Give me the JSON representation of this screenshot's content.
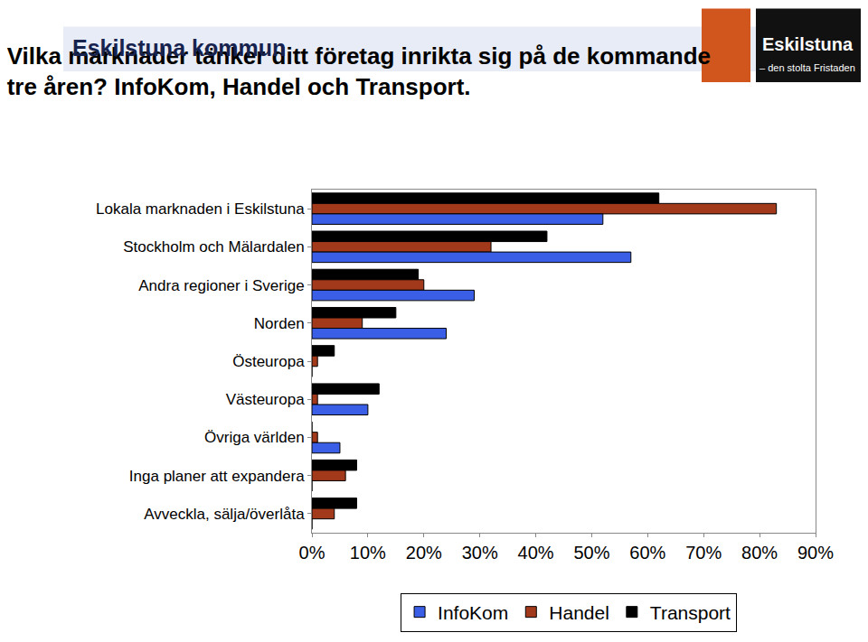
{
  "chart_data": {
    "type": "bar",
    "orientation": "horizontal",
    "title": "Vilka marknader tänker ditt företag inrikta sig på de kommande\ntre åren? InfoKom, Handel och Transport.",
    "annotations": [
      {
        "text": "Eskilstuna kommun"
      },
      {
        "text": "Eskilstuna"
      },
      {
        "text": "– den stolta Fristaden"
      }
    ],
    "categories": [
      "Lokala marknaden i Eskilstuna",
      "Stockholm och Mälardalen",
      "Andra regioner i Sverige",
      "Norden",
      "Östeuropa",
      "Västeuropa",
      "Övriga världen",
      "Inga planer att expandera",
      "Avveckla, sälja/överlåta"
    ],
    "series": [
      {
        "name": "InfoKom",
        "color": "#3a5ee6",
        "values": [
          52,
          57,
          29,
          24,
          0,
          10,
          5,
          0,
          0
        ]
      },
      {
        "name": "Handel",
        "color": "#a3391b",
        "values": [
          83,
          32,
          20,
          9,
          1,
          1,
          1,
          6,
          4
        ]
      },
      {
        "name": "Transport",
        "color": "#000000",
        "values": [
          62,
          42,
          19,
          15,
          4,
          12,
          0,
          8,
          8
        ]
      }
    ],
    "xlim": [
      0,
      90
    ],
    "xticks": [
      {
        "value": 0,
        "label": "0%"
      },
      {
        "value": 10,
        "label": "10%"
      },
      {
        "value": 20,
        "label": "20%"
      },
      {
        "value": 30,
        "label": "30%"
      },
      {
        "value": 40,
        "label": "40%"
      },
      {
        "value": 50,
        "label": "50%"
      },
      {
        "value": 60,
        "label": "60%"
      },
      {
        "value": 70,
        "label": "70%"
      },
      {
        "value": 80,
        "label": "80%"
      },
      {
        "value": 90,
        "label": "90%"
      }
    ],
    "grid": false,
    "legend": "bottom"
  }
}
